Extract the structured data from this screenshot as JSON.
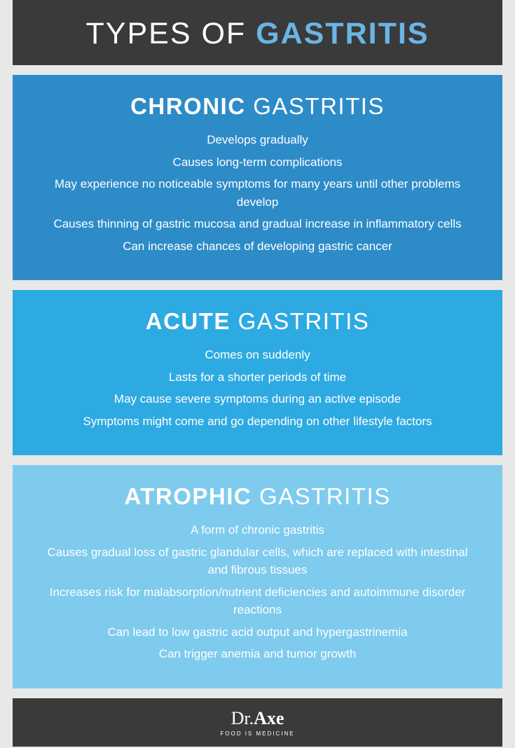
{
  "header": {
    "word1": "TYPES OF",
    "word2": "GASTRITIS",
    "bg_color": "#3a3a3a",
    "word1_color": "#ffffff",
    "word2_color": "#6bb5e6"
  },
  "sections": [
    {
      "title_bold": "CHRONIC",
      "title_reg": "GASTRITIS",
      "bg_color": "#2d8bc8",
      "bullets": [
        "Develops gradually",
        "Causes long-term complications",
        "May experience no noticeable symptoms for many years until other problems develop",
        "Causes thinning of gastric mucosa and gradual increase in inflammatory cells",
        "Can increase chances of developing gastric cancer"
      ]
    },
    {
      "title_bold": "ACUTE",
      "title_reg": "GASTRITIS",
      "bg_color": "#2eaae2",
      "bullets": [
        "Comes on suddenly",
        "Lasts for a shorter periods of time",
        "May cause severe symptoms during an active episode",
        "Symptoms might come and go depending on other lifestyle factors"
      ]
    },
    {
      "title_bold": "ATROPHIC",
      "title_reg": "GASTRITIS",
      "bg_color": "#7ecbee",
      "bullets": [
        "A form of chronic gastritis",
        "Causes gradual loss of gastric glandular cells, which are replaced with intestinal and fibrous tissues",
        "Increases risk for malabsorption/nutrient deficiencies and autoimmune disorder reactions",
        "Can lead to low gastric acid output and hypergastrinemia",
        "Can trigger anemia and tumor growth"
      ]
    }
  ],
  "footer": {
    "brand_pre": "Dr.",
    "brand_main": "Axe",
    "tagline": "FOOD IS MEDICINE",
    "bg_color": "#3a3a3a"
  }
}
